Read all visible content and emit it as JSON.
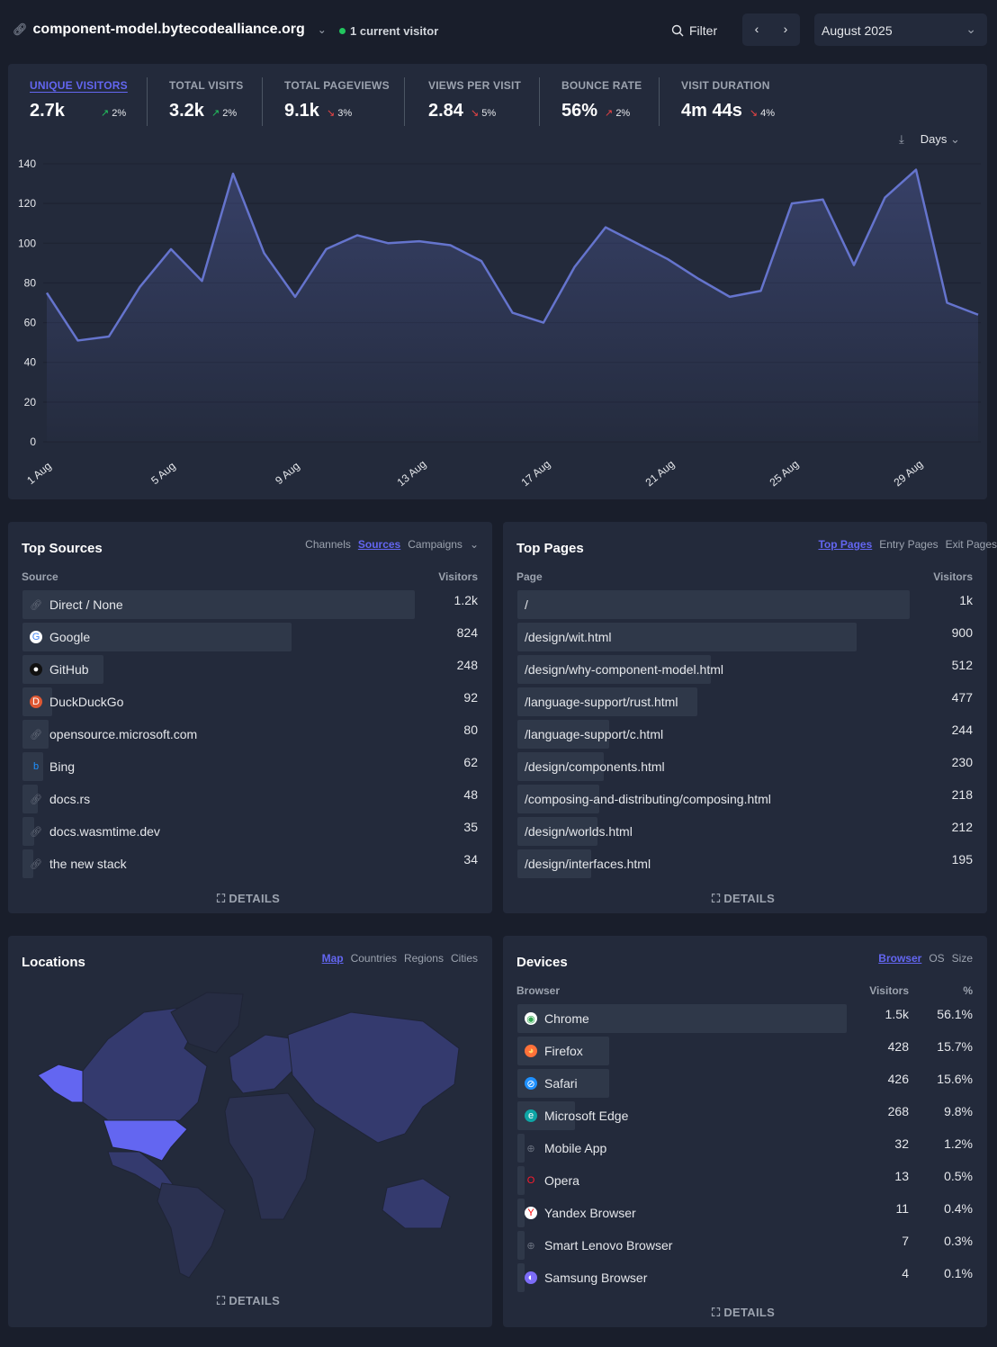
{
  "header": {
    "site": "component-model.bytecodealliance.org",
    "visitors_now": "1 current visitor",
    "filter": "Filter",
    "period": "August 2025"
  },
  "stats": [
    {
      "label": "UNIQUE VISITORS",
      "value": "2.7k",
      "change": "2%",
      "dir": "up",
      "good": true,
      "active": true
    },
    {
      "label": "TOTAL VISITS",
      "value": "3.2k",
      "change": "2%",
      "dir": "up",
      "good": true
    },
    {
      "label": "TOTAL PAGEVIEWS",
      "value": "9.1k",
      "change": "3%",
      "dir": "down",
      "good": false
    },
    {
      "label": "VIEWS PER VISIT",
      "value": "2.84",
      "change": "5%",
      "dir": "down",
      "good": false
    },
    {
      "label": "BOUNCE RATE",
      "value": "56%",
      "change": "2%",
      "dir": "up",
      "good": false
    },
    {
      "label": "VISIT DURATION",
      "value": "4m 44s",
      "change": "4%",
      "dir": "down",
      "good": false
    }
  ],
  "interval": "Days",
  "chart_data": {
    "type": "area",
    "series": [
      {
        "values": [
          75,
          51,
          53,
          78,
          97,
          81,
          135,
          95,
          73,
          97,
          104,
          100,
          101,
          99,
          91,
          65,
          60,
          88,
          108,
          100,
          92,
          82,
          73,
          76,
          120,
          122,
          89,
          123,
          137,
          70,
          64
        ]
      }
    ],
    "x": [
      "1 Aug",
      "2 Aug",
      "3 Aug",
      "4 Aug",
      "5 Aug",
      "6 Aug",
      "7 Aug",
      "8 Aug",
      "9 Aug",
      "10 Aug",
      "11 Aug",
      "12 Aug",
      "13 Aug",
      "14 Aug",
      "15 Aug",
      "16 Aug",
      "17 Aug",
      "18 Aug",
      "19 Aug",
      "20 Aug",
      "21 Aug",
      "22 Aug",
      "23 Aug",
      "24 Aug",
      "25 Aug",
      "26 Aug",
      "27 Aug",
      "28 Aug",
      "29 Aug",
      "30 Aug",
      "31 Aug"
    ],
    "xticks": [
      "1 Aug",
      "5 Aug",
      "9 Aug",
      "13 Aug",
      "17 Aug",
      "21 Aug",
      "25 Aug",
      "29 Aug"
    ],
    "yticks": [
      "0",
      "20",
      "40",
      "60",
      "80",
      "100",
      "120",
      "140"
    ],
    "ylim": [
      0,
      140
    ],
    "grid": true,
    "color": "#6574cd"
  },
  "sources": {
    "title": "Top Sources",
    "tabs": [
      "Channels",
      "Sources",
      "Campaigns"
    ],
    "active": 1,
    "col1": "Source",
    "col2": "Visitors",
    "details": "DETAILS",
    "rows": [
      {
        "label": "Direct / None",
        "value": "1.2k",
        "n": 1200,
        "icon": "link"
      },
      {
        "label": "Google",
        "value": "824",
        "n": 824,
        "icon": "google"
      },
      {
        "label": "GitHub",
        "value": "248",
        "n": 248,
        "icon": "github"
      },
      {
        "label": "DuckDuckGo",
        "value": "92",
        "n": 92,
        "icon": "duckduckgo"
      },
      {
        "label": "opensource.microsoft.com",
        "value": "80",
        "n": 80,
        "icon": "link"
      },
      {
        "label": "Bing",
        "value": "62",
        "n": 62,
        "icon": "bing"
      },
      {
        "label": "docs.rs",
        "value": "48",
        "n": 48,
        "icon": "link"
      },
      {
        "label": "docs.wasmtime.dev",
        "value": "35",
        "n": 35,
        "icon": "link"
      },
      {
        "label": "the new stack",
        "value": "34",
        "n": 34,
        "icon": "link"
      }
    ]
  },
  "pages": {
    "title": "Top Pages",
    "tabs": [
      "Top Pages",
      "Entry Pages",
      "Exit Pages"
    ],
    "active": 0,
    "col1": "Page",
    "col2": "Visitors",
    "details": "DETAILS",
    "rows": [
      {
        "label": "/",
        "value": "1k",
        "n": 1040
      },
      {
        "label": "/design/wit.html",
        "value": "900",
        "n": 900
      },
      {
        "label": "/design/why-component-model.html",
        "value": "512",
        "n": 512
      },
      {
        "label": "/language-support/rust.html",
        "value": "477",
        "n": 477
      },
      {
        "label": "/language-support/c.html",
        "value": "244",
        "n": 244
      },
      {
        "label": "/design/components.html",
        "value": "230",
        "n": 230
      },
      {
        "label": "/composing-and-distributing/composing.html",
        "value": "218",
        "n": 218
      },
      {
        "label": "/design/worlds.html",
        "value": "212",
        "n": 212
      },
      {
        "label": "/design/interfaces.html",
        "value": "195",
        "n": 195
      }
    ]
  },
  "locations": {
    "title": "Locations",
    "tabs": [
      "Map",
      "Countries",
      "Regions",
      "Cities"
    ],
    "active": 0,
    "details": "DETAILS"
  },
  "devices": {
    "title": "Devices",
    "tabs": [
      "Browser",
      "OS",
      "Size"
    ],
    "active": 0,
    "col1": "Browser",
    "col2": "Visitors",
    "col3": "%",
    "details": "DETAILS",
    "rows": [
      {
        "label": "Chrome",
        "value": "1.5k",
        "pct": "56.1%",
        "n": 1530,
        "icon": "chrome",
        "color": "#34a853"
      },
      {
        "label": "Firefox",
        "value": "428",
        "pct": "15.7%",
        "n": 428,
        "icon": "firefox",
        "color": "#ff7139"
      },
      {
        "label": "Safari",
        "value": "426",
        "pct": "15.6%",
        "n": 426,
        "icon": "safari",
        "color": "#1e90ff"
      },
      {
        "label": "Microsoft Edge",
        "value": "268",
        "pct": "9.8%",
        "n": 268,
        "icon": "edge",
        "color": "#0ea5a5"
      },
      {
        "label": "Mobile App",
        "value": "32",
        "pct": "1.2%",
        "n": 32,
        "icon": "globe",
        "color": "#6b7280"
      },
      {
        "label": "Opera",
        "value": "13",
        "pct": "0.5%",
        "n": 13,
        "icon": "opera",
        "color": "#ff1b2d"
      },
      {
        "label": "Yandex Browser",
        "value": "11",
        "pct": "0.4%",
        "n": 11,
        "icon": "yandex",
        "color": "#ff0000"
      },
      {
        "label": "Smart Lenovo Browser",
        "value": "7",
        "pct": "0.3%",
        "n": 7,
        "icon": "globe",
        "color": "#6b7280"
      },
      {
        "label": "Samsung Browser",
        "value": "4",
        "pct": "0.1%",
        "n": 4,
        "icon": "samsung",
        "color": "#7c6cf7"
      }
    ]
  }
}
